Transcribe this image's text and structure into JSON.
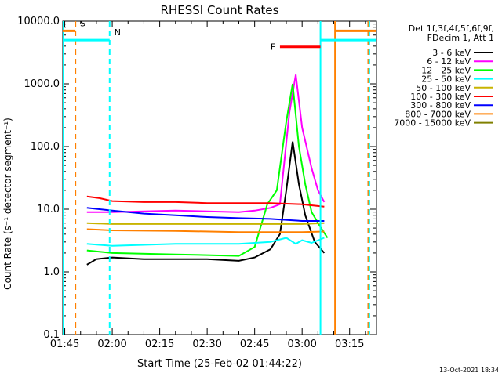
{
  "chart_data": {
    "type": "line",
    "title": "RHESSI Count Rates",
    "xlabel": "Start Time (25-Feb-02 01:44:22)",
    "ylabel": "Count Rate (s⁻¹ detector segment⁻¹)",
    "y_scale": "log",
    "ylim": [
      0.1,
      10000.0
    ],
    "xlim": [
      "01:44:22",
      "03:23:30"
    ],
    "x_ticks": [
      "01:45",
      "02:00",
      "02:15",
      "02:30",
      "02:45",
      "03:00",
      "03:15"
    ],
    "y_ticks": [
      "0.1",
      "1.0",
      "10.0",
      "100.0",
      "1000.0",
      "10000.0"
    ],
    "legend_header": [
      "Det 1f,3f,4f,5f,6f,9f,",
      "FDecim 1, Att 1"
    ],
    "legend_position": "right",
    "footer": "13-Oct-2021 18:34",
    "series": [
      {
        "name": "3 - 6 keV",
        "color": "#000000",
        "t": [
          "01:52:00",
          "01:55:00",
          "02:00:00",
          "02:10:00",
          "02:20:00",
          "02:30:00",
          "02:40:00",
          "02:45:00",
          "02:50:00",
          "02:53:00",
          "02:55:00",
          "02:57:00",
          "02:59:00",
          "03:01:00",
          "03:04:00",
          "03:07:00"
        ],
        "values": [
          1.3,
          1.6,
          1.7,
          1.6,
          1.6,
          1.6,
          1.5,
          1.7,
          2.3,
          4.0,
          20.0,
          120.0,
          25.0,
          8.0,
          3.0,
          2.0
        ]
      },
      {
        "name": "6 - 12 keV",
        "color": "#ff00ff",
        "t": [
          "01:52:00",
          "02:00:00",
          "02:20:00",
          "02:40:00",
          "02:45:00",
          "02:50:00",
          "02:53:00",
          "02:56:00",
          "02:58:00",
          "03:00:00",
          "03:03:00",
          "03:05:00",
          "03:07:00"
        ],
        "values": [
          9.0,
          9.0,
          9.5,
          9.0,
          9.5,
          10.5,
          12.0,
          350.0,
          1400.0,
          200.0,
          45.0,
          20.0,
          13.0
        ]
      },
      {
        "name": "12 - 25 keV",
        "color": "#00ff00",
        "t": [
          "01:52:00",
          "02:00:00",
          "02:20:00",
          "02:40:00",
          "02:45:00",
          "02:49:00",
          "02:52:00",
          "02:55:00",
          "02:57:00",
          "02:59:00",
          "03:01:00",
          "03:03:00",
          "03:06:00",
          "03:08:00"
        ],
        "values": [
          2.2,
          2.0,
          1.9,
          1.8,
          2.5,
          12.0,
          20.0,
          250.0,
          1000.0,
          100.0,
          25.0,
          9.0,
          5.0,
          3.5
        ]
      },
      {
        "name": "25 - 50 keV",
        "color": "#00ffff",
        "t": [
          "01:52:00",
          "02:00:00",
          "02:20:00",
          "02:40:00",
          "02:50:00",
          "02:55:00",
          "02:58:00",
          "03:00:00",
          "03:03:00",
          "03:07:00"
        ],
        "values": [
          2.8,
          2.6,
          2.8,
          2.8,
          3.0,
          3.5,
          2.8,
          3.2,
          2.9,
          3.5
        ]
      },
      {
        "name": "50 - 100 keV",
        "color": "#c8b400",
        "t": [
          "01:52:00",
          "02:00:00",
          "02:20:00",
          "02:40:00",
          "03:00:00",
          "03:07:00"
        ],
        "values": [
          6.0,
          5.8,
          5.8,
          5.8,
          5.8,
          6.0
        ]
      },
      {
        "name": "100 - 300 keV",
        "color": "#ff0000",
        "t": [
          "01:52:00",
          "01:56:00",
          "02:00:00",
          "02:10:00",
          "02:20:00",
          "02:30:00",
          "02:40:00",
          "02:50:00",
          "03:00:00",
          "03:07:00"
        ],
        "values": [
          16.0,
          15.0,
          13.5,
          13.0,
          13.0,
          12.5,
          12.5,
          12.5,
          12.0,
          11.0
        ]
      },
      {
        "name": "300 - 800 keV",
        "color": "#0000ff",
        "t": [
          "01:52:00",
          "02:00:00",
          "02:10:00",
          "02:20:00",
          "02:30:00",
          "02:40:00",
          "02:50:00",
          "03:00:00",
          "03:07:00"
        ],
        "values": [
          10.5,
          9.5,
          8.5,
          8.0,
          7.5,
          7.2,
          7.0,
          6.5,
          6.5
        ]
      },
      {
        "name": "800 - 7000 keV",
        "color": "#ff8000",
        "t": [
          "01:52:00",
          "02:00:00",
          "02:20:00",
          "02:40:00",
          "03:00:00",
          "03:07:00"
        ],
        "values": [
          4.8,
          4.6,
          4.5,
          4.3,
          4.3,
          4.4
        ]
      },
      {
        "name": "7000 - 15000 keV",
        "color": "#808000",
        "t": [],
        "values": []
      }
    ],
    "markers": [
      {
        "label": "S",
        "color": "#ff8000",
        "start": "01:44:22",
        "end": "01:48:22",
        "level": 7000.0
      },
      {
        "label": "N",
        "color": "#00ffff",
        "start": "01:44:22",
        "end": "01:59:11",
        "level": 5000.0
      },
      {
        "label": "F",
        "color": "#ff0000",
        "start": "02:53:00",
        "end": "03:05:48",
        "level": 3900.0
      },
      {
        "label": "",
        "color": "#ff8000",
        "start": "03:10:24",
        "end": "03:23:30",
        "level": 7000.0
      },
      {
        "label": "",
        "color": "#00ffff",
        "start": "03:05:48",
        "end": "03:23:30",
        "level": 5000.0
      }
    ],
    "vertical_lines": [
      {
        "color": "#00ffff",
        "style": "solid",
        "t": "01:44:22"
      },
      {
        "color": "#ff8000",
        "style": "dashed",
        "t": "01:48:22"
      },
      {
        "color": "#00ffff",
        "style": "dashed",
        "t": "01:59:11"
      },
      {
        "color": "#00ffff",
        "style": "solid",
        "t": "03:05:48"
      },
      {
        "color": "#ff8000",
        "style": "solid",
        "t": "03:10:24"
      },
      {
        "color": "#ff8000",
        "style": "dashed",
        "t": "03:20:54"
      },
      {
        "color": "#00ffff",
        "style": "dashed",
        "t": "03:21:14"
      }
    ]
  }
}
